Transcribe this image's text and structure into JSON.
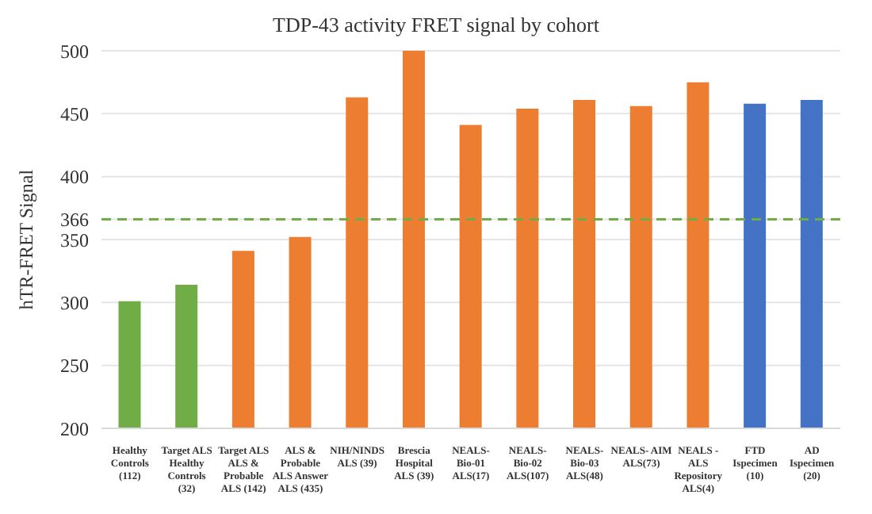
{
  "chart_data": {
    "type": "bar",
    "title": "TDP-43 activity FRET signal by cohort",
    "ylabel": "hTR-FRET Signal",
    "categories": [
      "Healthy Controls (112)",
      "Target ALS Healthy Controls (32)",
      "Target ALS ALS & Probable ALS (142)",
      "ALS & Probable ALS Answer ALS (435)",
      "NIH/NINDS ALS (39)",
      "Brescia Hospital ALS (39)",
      "NEALS- Bio-01 ALS(17)",
      "NEALS- Bio-02 ALS(107)",
      "NEALS- Bio-03 ALS(48)",
      "NEALS- AIM ALS(73)",
      "NEALS - ALS Repository ALS(4)",
      "FTD Ispecimen (10)",
      "AD Ispecimen (20)"
    ],
    "values": [
      301,
      314,
      341,
      352,
      463,
      500,
      441,
      454,
      461,
      456,
      475,
      458,
      461
    ],
    "colors": [
      "#70ad47",
      "#70ad47",
      "#ed7d31",
      "#ed7d31",
      "#ed7d31",
      "#ed7d31",
      "#ed7d31",
      "#ed7d31",
      "#ed7d31",
      "#ed7d31",
      "#ed7d31",
      "#4472c4",
      "#4472c4"
    ],
    "ylim": [
      200,
      500
    ],
    "yticks": [
      200,
      250,
      300,
      350,
      366,
      400,
      450,
      500
    ],
    "grid": "y",
    "ref_lines": [
      {
        "axis": "y",
        "value": 366,
        "color": "#70ad47",
        "line_style": "dashed"
      }
    ]
  }
}
